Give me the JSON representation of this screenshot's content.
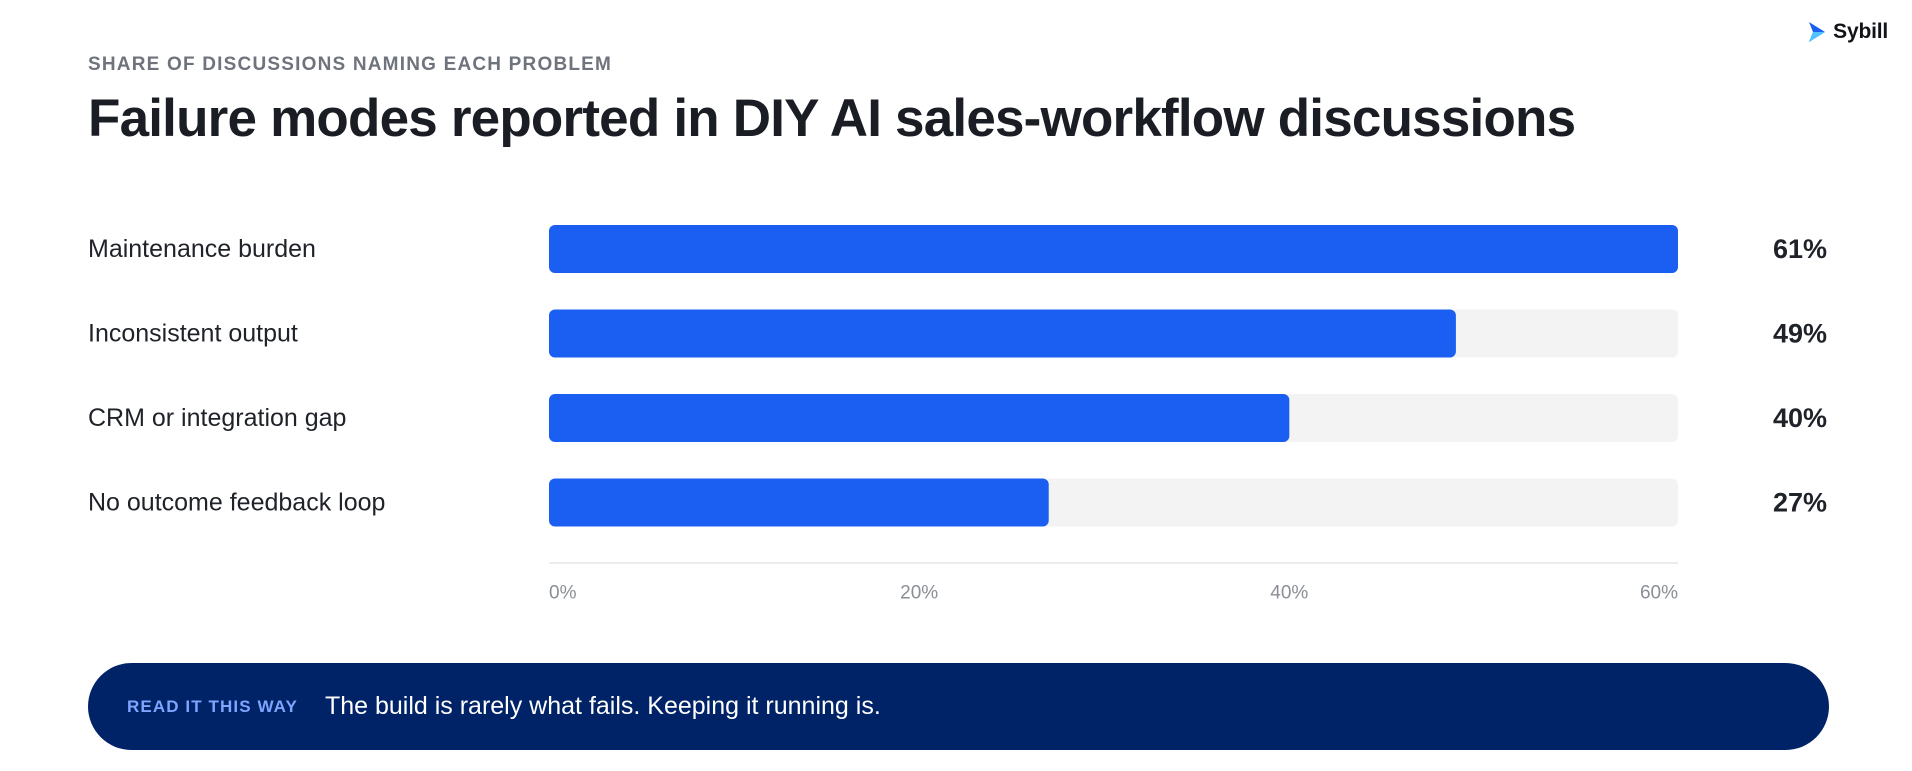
{
  "brand": {
    "name": "Sybill",
    "icon": "sybill-logo-icon"
  },
  "header": {
    "eyebrow": "SHARE OF DISCUSSIONS NAMING EACH PROBLEM",
    "title": "Failure modes reported in DIY AI sales-workflow discussions"
  },
  "chart_data": {
    "type": "bar",
    "orientation": "horizontal",
    "title": "Failure modes reported in DIY AI sales-workflow discussions",
    "subtitle": "SHARE OF DISCUSSIONS NAMING EACH PROBLEM",
    "categories": [
      "Maintenance burden",
      "Inconsistent output",
      "CRM or integration gap",
      "No outcome feedback loop"
    ],
    "values": [
      61,
      49,
      40,
      27
    ],
    "value_labels": [
      "61%",
      "49%",
      "40%",
      "27%"
    ],
    "xlim": [
      0,
      61
    ],
    "xticks": [
      0,
      20,
      40,
      60
    ],
    "xtick_labels": [
      "0%",
      "20%",
      "40%",
      "60%"
    ],
    "xlabel": "",
    "ylabel": "",
    "grid": false,
    "legend": "none",
    "colors": {
      "bar": "#1a5ff2",
      "track": "#f3f3f4",
      "axis": "#e4e5e8",
      "tick": "#8a8e96",
      "category": "#1f2228",
      "value": "#1f2228"
    }
  },
  "callout": {
    "label": "READ IT THIS WAY",
    "text": "The build is rarely what fails. Keeping it running is."
  }
}
